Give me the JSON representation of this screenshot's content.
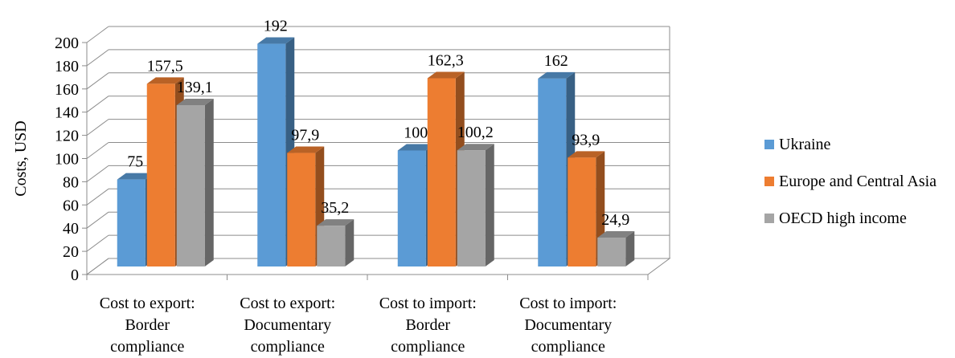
{
  "chart_data": {
    "type": "bar",
    "ylabel": "Costs, USD",
    "ylim": [
      0,
      200
    ],
    "ystep": 20,
    "grid": true,
    "three_d": true,
    "legend_position": "right",
    "categories": [
      [
        "Cost to export:",
        "Border",
        "compliance"
      ],
      [
        "Cost to export:",
        "Documentary",
        "compliance"
      ],
      [
        "Cost to import:",
        "Border",
        "compliance"
      ],
      [
        "Cost to import:",
        "Documentary",
        "compliance"
      ]
    ],
    "series": [
      {
        "name": "Ukraine",
        "color": "#5b9bd5",
        "values": [
          75,
          192,
          100,
          162
        ],
        "labels": [
          "75",
          "192",
          "100",
          "162"
        ]
      },
      {
        "name": "Europe and Central Asia",
        "color": "#ed7d31",
        "values": [
          157.5,
          97.9,
          162.3,
          93.9
        ],
        "labels": [
          "157,5",
          "97,9",
          "162,3",
          "93,9"
        ]
      },
      {
        "name": "OECD high income",
        "color": "#a5a5a5",
        "values": [
          139.1,
          35.2,
          100.2,
          24.9
        ],
        "labels": [
          "139,1",
          "35,2",
          "100,2",
          "24,9"
        ]
      }
    ]
  }
}
